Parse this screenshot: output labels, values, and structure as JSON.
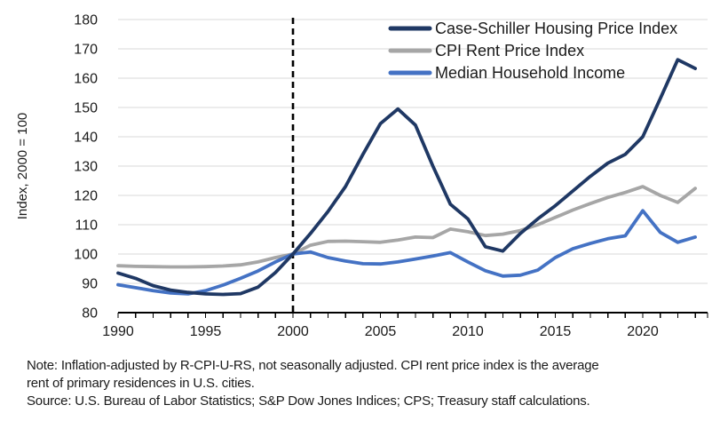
{
  "figure": {
    "y_axis_title": "Index, 2000 = 100",
    "note_lines": [
      "Note: Inflation-adjusted by R-CPI-U-RS, not seasonally adjusted. CPI rent price index is the average",
      "rent of primary residences in U.S. cities."
    ],
    "source": "Source: U.S. Bureau of Labor Statistics; S&P Dow Jones Indices; CPS; Treasury staff calculations."
  },
  "colors": {
    "case_schiller": "#1F3864",
    "cpi_rent": "#A6A6A6",
    "median_income": "#4472C4",
    "gridline": "#D9D9D9",
    "axis": "#000000",
    "text": "#1a1a1a",
    "reference_line": "#000000",
    "background": "#ffffff"
  },
  "chart_data": {
    "type": "line",
    "title": "",
    "ylabel": "Index, 2000 = 100",
    "xlabel": "",
    "ylim": [
      80,
      180
    ],
    "ytick_interval": 10,
    "yticks": [
      80,
      90,
      100,
      110,
      120,
      130,
      140,
      150,
      160,
      170,
      180
    ],
    "xticks_labeled": [
      1990,
      1995,
      2000,
      2005,
      2010,
      2015,
      2020
    ],
    "xtick_minor_interval_years": 1,
    "grid": "horizontal",
    "legend_position": "top-right",
    "reference_line_x": 2000,
    "reference_line_style": "dashed-vertical",
    "x": [
      1990,
      1991,
      1992,
      1993,
      1994,
      1995,
      1996,
      1997,
      1998,
      1999,
      2000,
      2001,
      2002,
      2003,
      2004,
      2005,
      2006,
      2007,
      2008,
      2009,
      2010,
      2011,
      2012,
      2013,
      2014,
      2015,
      2016,
      2017,
      2018,
      2019,
      2020,
      2021,
      2022,
      2023
    ],
    "series": [
      {
        "name": "Case-Schiller Housing Price Index",
        "color": "#1F3864",
        "values": [
          93.5,
          91.7,
          89.2,
          87.7,
          86.9,
          86.4,
          86.2,
          86.5,
          88.7,
          93.7,
          100,
          107,
          114.5,
          123,
          134,
          144.5,
          149.5,
          144,
          130,
          117,
          112,
          102.5,
          101,
          107,
          112,
          116.5,
          121.5,
          126.5,
          131,
          134,
          140,
          153,
          166.3,
          163.3
        ]
      },
      {
        "name": "CPI Rent Price Index",
        "color": "#A6A6A6",
        "values": [
          96,
          95.8,
          95.7,
          95.6,
          95.6,
          95.7,
          95.9,
          96.3,
          97.3,
          98.8,
          100,
          103,
          104.3,
          104.4,
          104.2,
          104,
          104.8,
          105.8,
          105.6,
          108.5,
          107.6,
          106.3,
          106.8,
          108,
          110,
          112.5,
          115,
          117.2,
          119.3,
          121,
          123,
          120,
          117.6,
          122.4
        ]
      },
      {
        "name": "Median Household Income",
        "color": "#4472C4",
        "values": [
          89.5,
          88.5,
          87.5,
          86.7,
          86.4,
          87.5,
          89.4,
          91.7,
          94.2,
          97.3,
          100,
          100.7,
          98.8,
          97.6,
          96.7,
          96.6,
          97.3,
          98.3,
          99.3,
          100.5,
          97.3,
          94.3,
          92.5,
          92.8,
          94.5,
          98.8,
          101.8,
          103.6,
          105.2,
          106.2,
          114.8,
          107.4,
          104,
          105.8
        ]
      }
    ]
  }
}
